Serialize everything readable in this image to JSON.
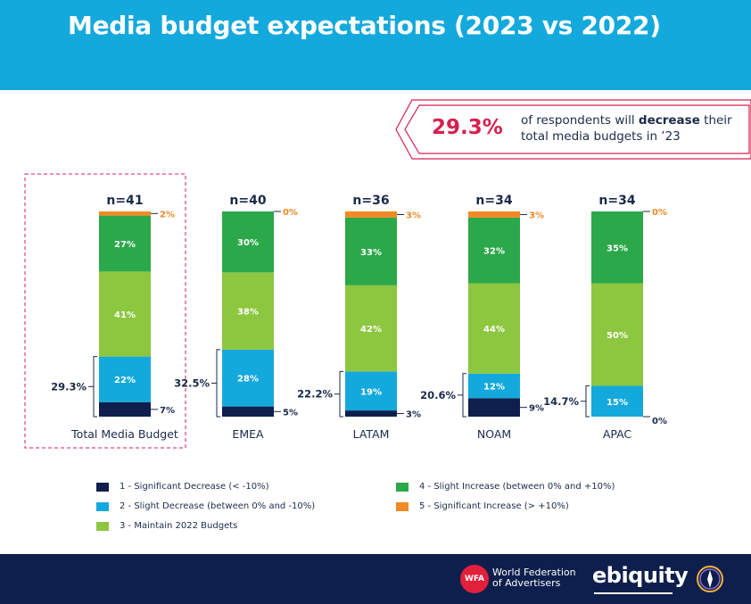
{
  "title": "Media budget expectations (2023 vs 2022)",
  "callout": {
    "value": "29.3%",
    "text_before": "of respondents will ",
    "text_bold": "decrease",
    "text_after": " their total media budgets in ’23"
  },
  "colors": {
    "header": "#14a9dc",
    "significant_decrease": "#0e1f4d",
    "slight_decrease": "#14a9dc",
    "maintain": "#8dc63f",
    "slight_increase": "#2ba84a",
    "significant_increase": "#f08a24",
    "accent": "#d6204f",
    "footer": "#0e1f4d"
  },
  "chart_data": {
    "type": "bar",
    "stacked": true,
    "categories": [
      "Total Media Budget",
      "EMEA",
      "LATAM",
      "NOAM",
      "APAC"
    ],
    "sample_sizes": [
      "n=41",
      "n=40",
      "n=36",
      "n=34",
      "n=34"
    ],
    "series": [
      {
        "name": "1 - Significant Decrease (< -10%)",
        "values": [
          7,
          5,
          3,
          9,
          0
        ],
        "labels": [
          "7%",
          "5%",
          "3%",
          "9%",
          "0%"
        ]
      },
      {
        "name": "2 - Slight Decrease (between 0% and -10%)",
        "values": [
          22,
          28,
          19,
          12,
          15
        ],
        "labels": [
          "22%",
          "28%",
          "19%",
          "12%",
          "15%"
        ]
      },
      {
        "name": "3 - Maintain 2022 Budgets",
        "values": [
          41,
          38,
          42,
          44,
          50
        ],
        "labels": [
          "41%",
          "38%",
          "42%",
          "44%",
          "50%"
        ]
      },
      {
        "name": "4 - Slight Increase (between 0% and +10%)",
        "values": [
          27,
          30,
          33,
          32,
          35
        ],
        "labels": [
          "27%",
          "30%",
          "33%",
          "32%",
          "35%"
        ]
      },
      {
        "name": "5 - Significant Increase (> +10%)",
        "values": [
          2,
          0,
          3,
          3,
          0
        ],
        "labels": [
          "2%",
          "0%",
          "3%",
          "3%",
          "0%"
        ]
      }
    ],
    "decrease_totals": [
      "29.3%",
      "32.5%",
      "22.2%",
      "20.6%",
      "14.7%"
    ],
    "highlighted_category": "Total Media Budget",
    "ylim": [
      0,
      100
    ]
  },
  "legend": {
    "items": [
      {
        "label": "1 - Significant Decrease (< -10%)",
        "color": "#0e1f4d"
      },
      {
        "label": "2 - Slight Decrease (between 0% and -10%)",
        "color": "#14a9dc"
      },
      {
        "label": "3 - Maintain 2022 Budgets",
        "color": "#8dc63f"
      },
      {
        "label": "4 - Slight Increase (between 0% and +10%)",
        "color": "#2ba84a"
      },
      {
        "label": "5 - Significant Increase (> +10%)",
        "color": "#f08a24"
      }
    ]
  },
  "footer": {
    "wfa_badge": "WFA",
    "wfa_name_line1": "World Federation",
    "wfa_name_line2": "of Advertisers",
    "ebiquity": "ebiquity"
  }
}
